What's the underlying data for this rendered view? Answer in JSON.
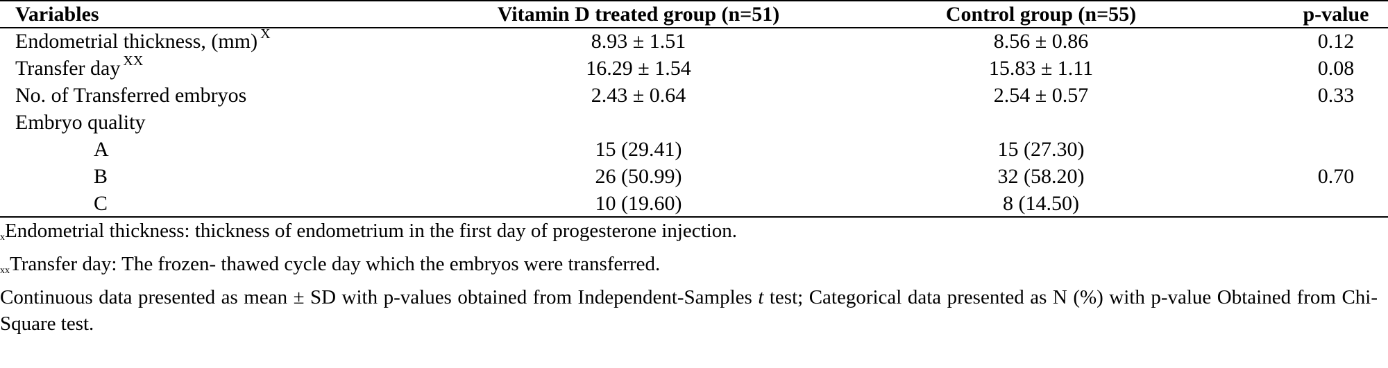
{
  "table": {
    "headers": {
      "variables": "Variables",
      "vitamin": "Vitamin D treated group (n=51)",
      "control": "Control group (n=55)",
      "pvalue": "p-value"
    },
    "rows": [
      {
        "label": "Endometrial thickness, (mm)",
        "sup": "X",
        "vitamin": "8.93 ± 1.51",
        "control": "8.56 ± 0.86",
        "p": "0.12"
      },
      {
        "label": "Transfer day",
        "sup": "XX",
        "vitamin": "16.29 ± 1.54",
        "control": "15.83 ± 1.11",
        "p": "0.08"
      },
      {
        "label": "No. of Transferred embryos",
        "vitamin": "2.43 ± 0.64",
        "control": "2.54 ± 0.57",
        "p": "0.33"
      },
      {
        "label": "Embryo quality"
      },
      {
        "label": "A",
        "vitamin": "15 (29.41)",
        "control": "15 (27.30)"
      },
      {
        "label": "B",
        "vitamin": "26 (50.99)",
        "control": "32 (58.20)",
        "p": "0.70"
      },
      {
        "label": "C",
        "vitamin": "10 (19.60)",
        "control": "8 (14.50)"
      }
    ]
  },
  "footnotes": {
    "fn1_mark": "x",
    "fn1_text": "Endometrial thickness: thickness of endometrium in the first day of progesterone injection.",
    "fn2_mark": "xx",
    "fn2_text": "Transfer day: The frozen- thawed cycle day which the embryos were transferred.",
    "fn3_part1": "Continuous data presented as mean ± SD with p-values obtained from Independent-Samples ",
    "fn3_italic": "t",
    "fn3_part2": " test; Categorical data presented as N (%) with p-value Obtained from Chi-Square test."
  }
}
